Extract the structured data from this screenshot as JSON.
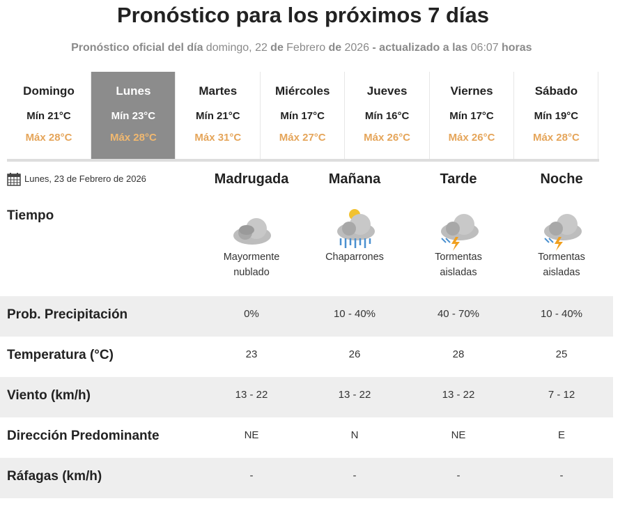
{
  "header": {
    "title": "Pronóstico para los próximos 7 días",
    "subtitle": [
      {
        "text": "Pronóstico oficial del día",
        "bold": true
      },
      {
        "text": "domingo, 22",
        "bold": false
      },
      {
        "text": "de",
        "bold": true
      },
      {
        "text": "Febrero",
        "bold": false
      },
      {
        "text": "de",
        "bold": true
      },
      {
        "text": "2026",
        "bold": false
      },
      {
        "text": "- actualizado a las",
        "bold": true
      },
      {
        "text": "06:07",
        "bold": false
      },
      {
        "text": "horas",
        "bold": true
      }
    ]
  },
  "days": [
    {
      "name": "Domingo",
      "min": "Mín 21°C",
      "max": "Máx 28°C"
    },
    {
      "name": "Lunes",
      "min": "Mín 23°C",
      "max": "Máx 28°C"
    },
    {
      "name": "Martes",
      "min": "Mín 21°C",
      "max": "Máx 31°C"
    },
    {
      "name": "Miércoles",
      "min": "Mín 17°C",
      "max": "Máx 27°C"
    },
    {
      "name": "Jueves",
      "min": "Mín 16°C",
      "max": "Máx 26°C"
    },
    {
      "name": "Viernes",
      "min": "Mín 17°C",
      "max": "Máx 26°C"
    },
    {
      "name": "Sábado",
      "min": "Mín 19°C",
      "max": "Máx 28°C"
    }
  ],
  "selected_day": 1,
  "detail": {
    "date": "Lunes, 23 de Febrero de 2026",
    "periods": [
      "Madrugada",
      "Mañana",
      "Tarde",
      "Noche"
    ],
    "weather_label": "Tiempo",
    "weather": [
      "Mayormente nublado",
      "Chaparrones",
      "Tormentas aisladas",
      "Tormentas aisladas"
    ],
    "rows": [
      {
        "label": "Prob. Precipitación",
        "values": [
          "0%",
          "10 - 40%",
          "40 - 70%",
          "10 - 40%"
        ]
      },
      {
        "label": "Temperatura (°C)",
        "values": [
          "23",
          "26",
          "28",
          "25"
        ]
      },
      {
        "label": "Viento (km/h)",
        "values": [
          "13 - 22",
          "13 - 22",
          "13 - 22",
          "7 - 12"
        ]
      },
      {
        "label": "Dirección Predominante",
        "values": [
          "NE",
          "N",
          "NE",
          "E"
        ]
      },
      {
        "label": "Ráfagas (km/h)",
        "values": [
          "-",
          "-",
          "-",
          "-"
        ]
      }
    ]
  }
}
